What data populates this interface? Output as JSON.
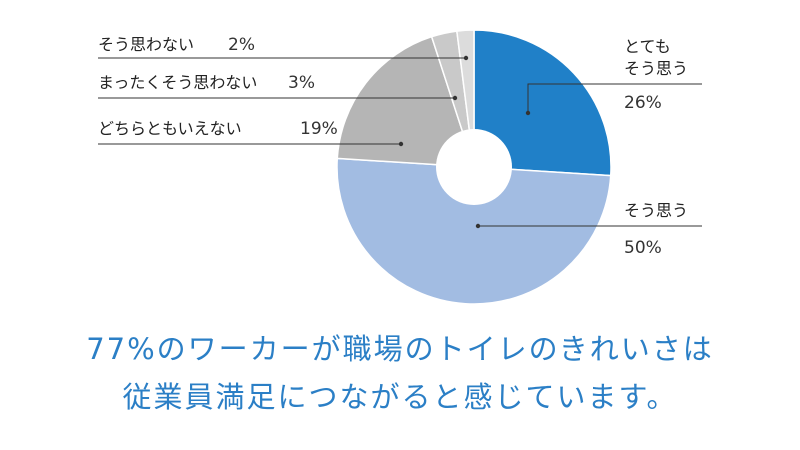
{
  "chart_data": {
    "type": "pie",
    "donut": true,
    "slices": [
      {
        "label": "とても\nそう思う",
        "value": 26,
        "pct_text": "26%",
        "color": "#2080c8"
      },
      {
        "label": "そう思う",
        "value": 50,
        "pct_text": "50%",
        "color": "#a2bce2"
      },
      {
        "label": "どちらともいえない",
        "value": 19,
        "pct_text": "19%",
        "color": "#b5b5b5"
      },
      {
        "label": "まったくそう思わない",
        "value": 3,
        "pct_text": "3%",
        "color": "#c9c9c9"
      },
      {
        "label": "そう思わない",
        "value": 2,
        "pct_text": "2%",
        "color": "#dcdcdc"
      }
    ]
  },
  "caption": {
    "line1": "77%のワーカーが職場のトイレのきれいさは",
    "line2": "従業員満足につながると感じています。"
  }
}
